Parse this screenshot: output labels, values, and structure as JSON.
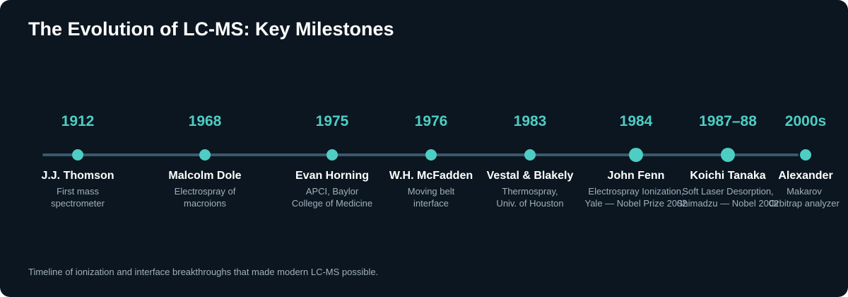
{
  "title": "The Evolution of LC-MS: Key Milestones",
  "caption": "Timeline of ionization and interface breakthroughs that made modern LC-MS possible.",
  "colors": {
    "background": "#0b1620",
    "accent": "#4ecdc4",
    "line": "#3a5a6c",
    "muted": "#9fb0bc"
  },
  "milestones": [
    {
      "year": "1912",
      "name": "J.J. Thomson",
      "desc1": "First mass",
      "desc2": "spectrometer"
    },
    {
      "year": "1968",
      "name": "Malcolm Dole",
      "desc1": "Electrospray of",
      "desc2": "macroions"
    },
    {
      "year": "1975",
      "name": "Evan Horning",
      "desc1": "APCI, Baylor",
      "desc2": "College of Medicine"
    },
    {
      "year": "1976",
      "name": "W.H. McFadden",
      "desc1": "Moving belt",
      "desc2": "interface"
    },
    {
      "year": "1983",
      "name": "Vestal & Blakely",
      "desc1": "Thermospray,",
      "desc2": "Univ. of Houston"
    },
    {
      "year": "1984",
      "name": "John Fenn",
      "desc1": "Electrospray Ionization,",
      "desc2": "Yale — Nobel Prize 2002"
    },
    {
      "year": "1987–88",
      "name": "Koichi Tanaka",
      "desc1": "Soft Laser Desorption,",
      "desc2": "Shimadzu — Nobel 2002"
    },
    {
      "year": "2000s",
      "name": "Alexander",
      "desc1": "Makarov",
      "desc2": "Orbitrap analyzer"
    }
  ]
}
